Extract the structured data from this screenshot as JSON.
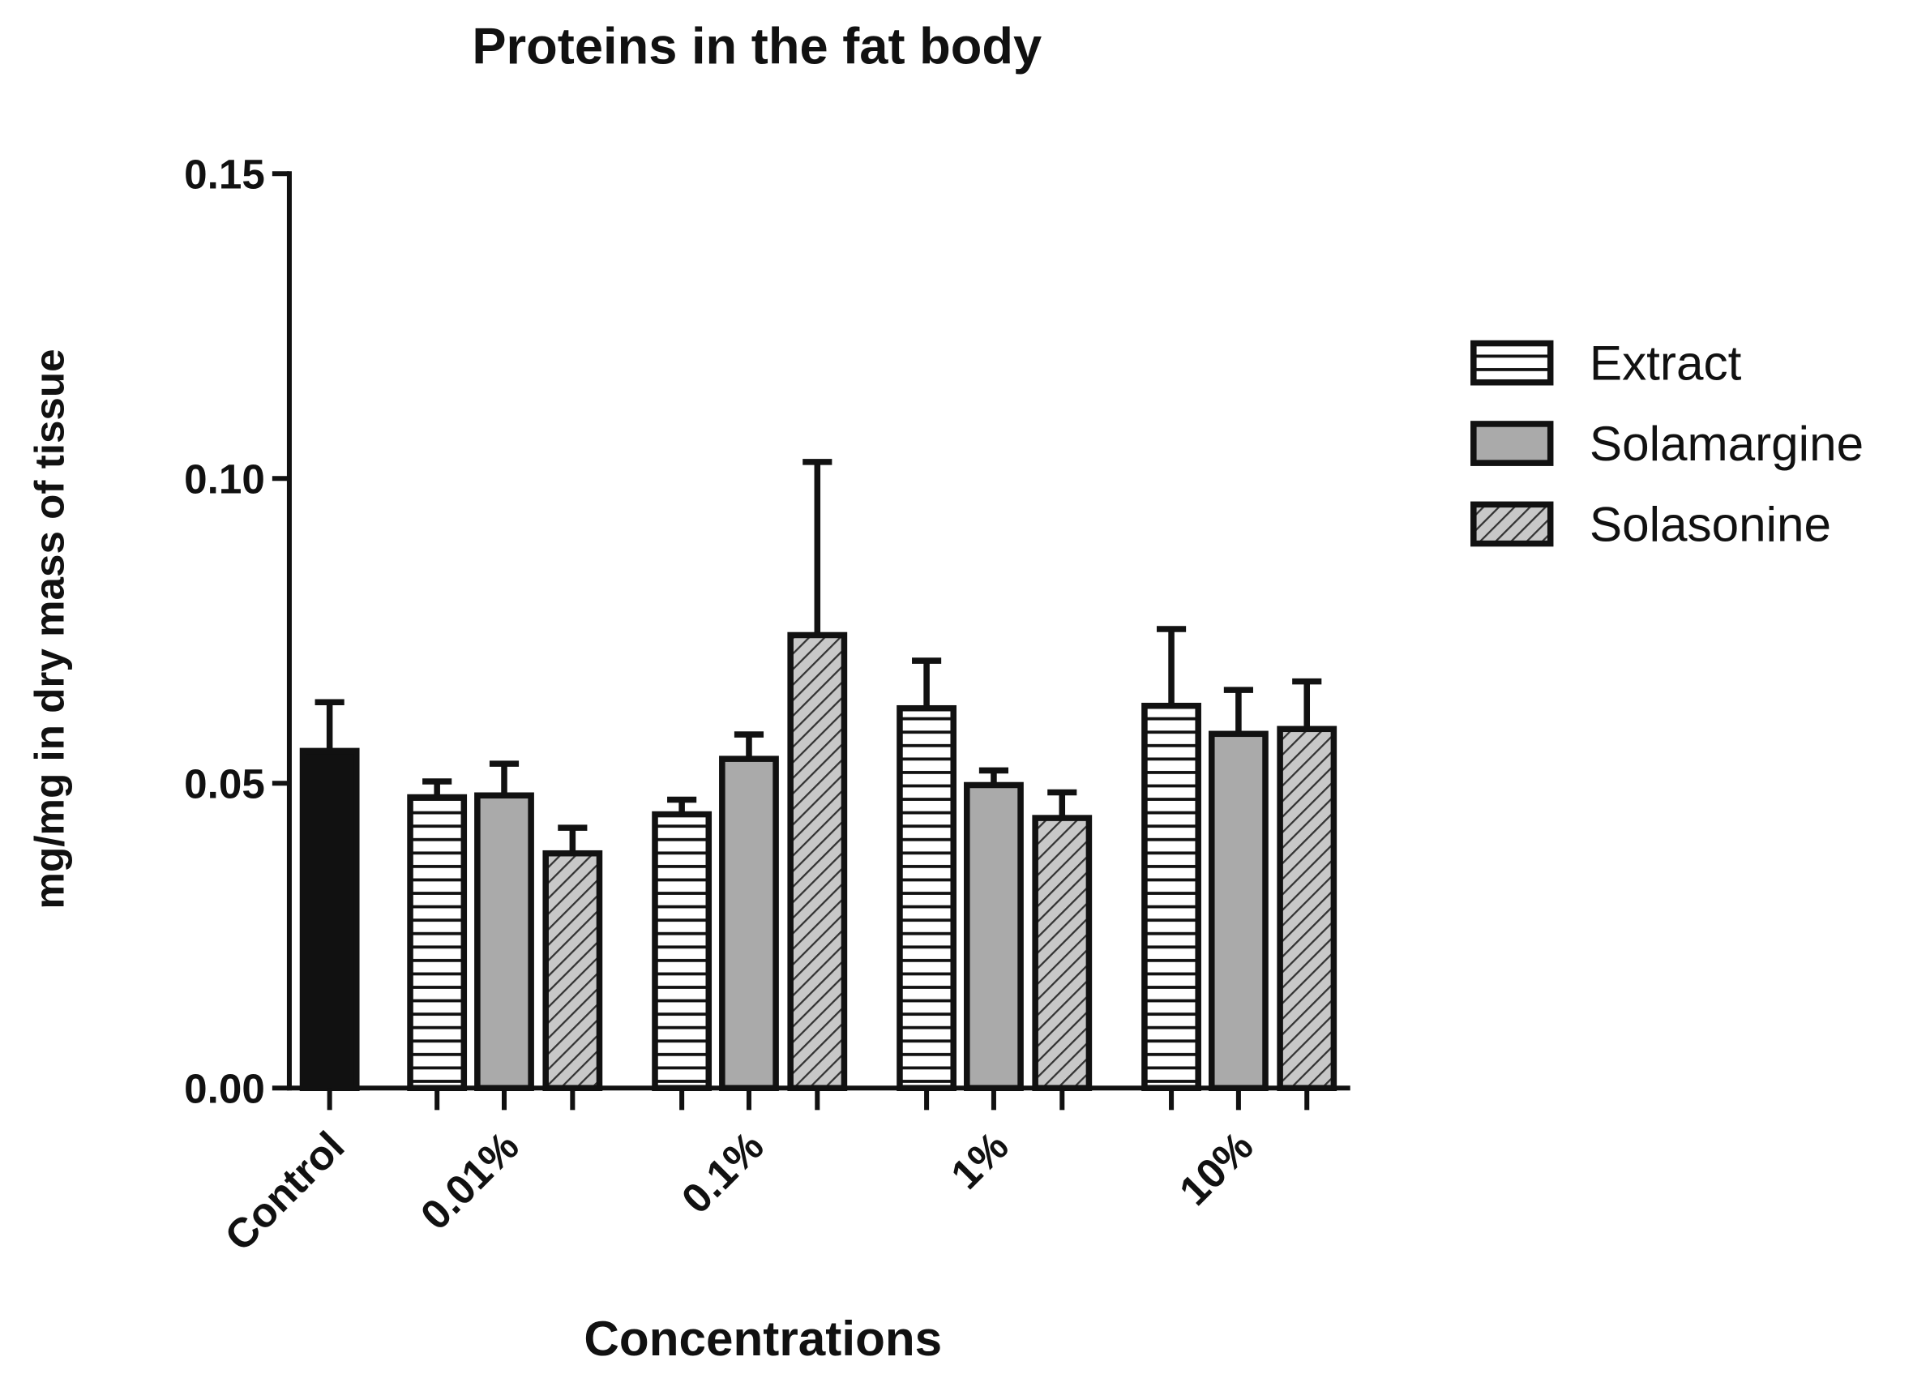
{
  "chart_data": {
    "type": "bar",
    "title": "Proteins in the fat body",
    "xlabel": "Concentrations",
    "ylabel": "mg/mg in dry mass of tissue",
    "categories": [
      "Control",
      "0.01%",
      "0.1%",
      "1%",
      "10%"
    ],
    "control": {
      "value": 0.0553,
      "error": 0.008,
      "color": "#111111"
    },
    "series": [
      {
        "name": "Extract",
        "color": "#ffffff",
        "pattern": "horizontal",
        "values": [
          null,
          0.0477,
          0.0449,
          0.0623,
          0.0627
        ],
        "errors": [
          null,
          0.0026,
          0.0024,
          0.0078,
          0.0126
        ]
      },
      {
        "name": "Solamargine",
        "color": "#aaaaaa",
        "pattern": null,
        "values": [
          null,
          0.048,
          0.054,
          0.0497,
          0.0581
        ],
        "errors": [
          null,
          0.0052,
          0.004,
          0.0024,
          0.0072
        ]
      },
      {
        "name": "Solasonine",
        "color": "#c8c8c8",
        "pattern": "diagonal",
        "values": [
          null,
          0.0385,
          0.0743,
          0.0443,
          0.0589
        ],
        "errors": [
          null,
          0.0042,
          0.0284,
          0.0042,
          0.0078
        ]
      }
    ],
    "ylim": [
      0,
      0.15
    ],
    "yticks": [
      {
        "value": 0,
        "label": "0.00"
      },
      {
        "value": 0.05,
        "label": "0.05"
      },
      {
        "value": 0.1,
        "label": "0.10"
      },
      {
        "value": 0.15,
        "label": "0.15"
      }
    ],
    "legend": "right"
  }
}
